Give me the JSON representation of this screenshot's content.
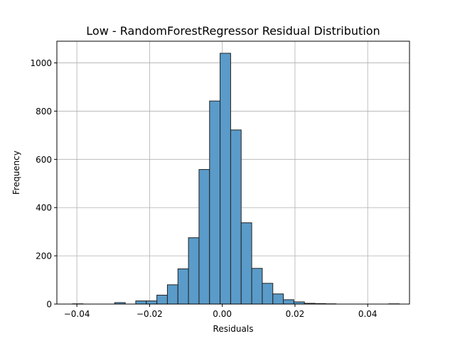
{
  "chart_data": {
    "type": "bar",
    "title": "Low - RandomForestRegressor Residual Distribution",
    "xlabel": "Residuals",
    "ylabel": "Frequency",
    "xlim": [
      -0.0455,
      0.0515
    ],
    "ylim": [
      0,
      1090
    ],
    "x_ticks": [
      -0.04,
      -0.02,
      0.0,
      0.02,
      0.04
    ],
    "x_tick_labels": [
      "−0.04",
      "−0.02",
      "0.00",
      "0.02",
      "0.04"
    ],
    "y_ticks": [
      0,
      200,
      400,
      600,
      800,
      1000
    ],
    "y_tick_labels": [
      "0",
      "200",
      "400",
      "600",
      "800",
      "1000"
    ],
    "grid": true,
    "bar_color": "#5a9bc9",
    "bar_edge_color": "#222222",
    "bins": [
      {
        "left": -0.0412,
        "right": -0.0383,
        "value": 1
      },
      {
        "left": -0.0383,
        "right": -0.0354,
        "value": 0
      },
      {
        "left": -0.0354,
        "right": -0.0325,
        "value": 0
      },
      {
        "left": -0.0325,
        "right": -0.0296,
        "value": 0
      },
      {
        "left": -0.0296,
        "right": -0.0267,
        "value": 6
      },
      {
        "left": -0.0267,
        "right": -0.0238,
        "value": 0
      },
      {
        "left": -0.0238,
        "right": -0.0209,
        "value": 13
      },
      {
        "left": -0.0209,
        "right": -0.018,
        "value": 13
      },
      {
        "left": -0.018,
        "right": -0.0151,
        "value": 37
      },
      {
        "left": -0.0151,
        "right": -0.0122,
        "value": 80
      },
      {
        "left": -0.0122,
        "right": -0.0093,
        "value": 146
      },
      {
        "left": -0.0093,
        "right": -0.0064,
        "value": 275
      },
      {
        "left": -0.0064,
        "right": -0.0035,
        "value": 558
      },
      {
        "left": -0.0035,
        "right": -0.0006,
        "value": 842
      },
      {
        "left": -0.0006,
        "right": 0.0023,
        "value": 1040
      },
      {
        "left": 0.0023,
        "right": 0.0052,
        "value": 722
      },
      {
        "left": 0.0052,
        "right": 0.0081,
        "value": 337
      },
      {
        "left": 0.0081,
        "right": 0.011,
        "value": 148
      },
      {
        "left": 0.011,
        "right": 0.0139,
        "value": 86
      },
      {
        "left": 0.0139,
        "right": 0.0168,
        "value": 42
      },
      {
        "left": 0.0168,
        "right": 0.0197,
        "value": 18
      },
      {
        "left": 0.0197,
        "right": 0.0226,
        "value": 9
      },
      {
        "left": 0.0226,
        "right": 0.0255,
        "value": 3
      },
      {
        "left": 0.0255,
        "right": 0.0284,
        "value": 2
      },
      {
        "left": 0.0284,
        "right": 0.0313,
        "value": 1
      },
      {
        "left": 0.0313,
        "right": 0.0342,
        "value": 0
      },
      {
        "left": 0.0342,
        "right": 0.0371,
        "value": 0
      },
      {
        "left": 0.0371,
        "right": 0.04,
        "value": 0
      },
      {
        "left": 0.04,
        "right": 0.0429,
        "value": 0
      },
      {
        "left": 0.0429,
        "right": 0.0458,
        "value": 0
      },
      {
        "left": 0.0458,
        "right": 0.0487,
        "value": 1
      }
    ]
  }
}
